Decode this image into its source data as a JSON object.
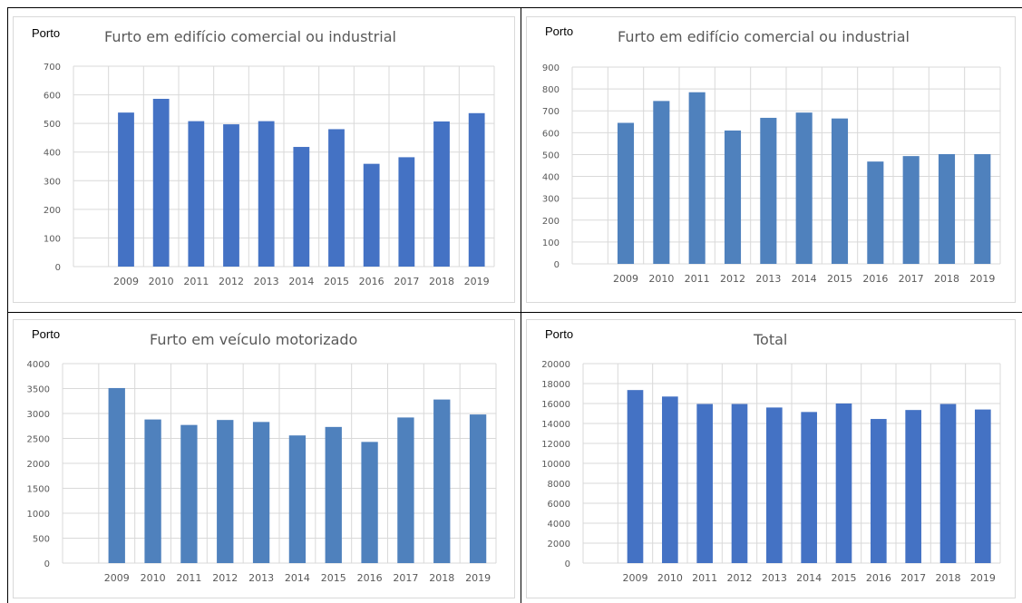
{
  "colors": {
    "bar_dark": "#4472c4",
    "bar_light": "#4f81bd",
    "grid": "#d9d9d9",
    "text": "#595959"
  },
  "chart_data": [
    {
      "type": "bar",
      "region_label": "Porto",
      "title": "Furto em edifício comercial ou industrial",
      "categories": [
        "2009",
        "2010",
        "2011",
        "2012",
        "2013",
        "2014",
        "2015",
        "2016",
        "2017",
        "2018",
        "2019"
      ],
      "values": [
        538,
        586,
        508,
        497,
        508,
        418,
        480,
        359,
        382,
        507,
        536
      ],
      "y_ticks": [
        "0",
        "100",
        "200",
        "300",
        "400",
        "500",
        "600",
        "700"
      ],
      "ylim": [
        0,
        700
      ],
      "color": "#4472c4",
      "grid": true
    },
    {
      "type": "bar",
      "region_label": "Porto",
      "title": "Furto em edifício comercial ou industrial",
      "categories": [
        "2009",
        "2010",
        "2011",
        "2012",
        "2013",
        "2014",
        "2015",
        "2016",
        "2017",
        "2018",
        "2019"
      ],
      "values": [
        645,
        745,
        785,
        610,
        668,
        692,
        665,
        468,
        493,
        502,
        502
      ],
      "y_ticks": [
        "0",
        "100",
        "200",
        "300",
        "400",
        "500",
        "600",
        "700",
        "800",
        "900"
      ],
      "ylim": [
        0,
        900
      ],
      "color": "#4f81bd",
      "grid": true
    },
    {
      "type": "bar",
      "region_label": "Porto",
      "title": "Furto em veículo motorizado",
      "categories": [
        "2009",
        "2010",
        "2011",
        "2012",
        "2013",
        "2014",
        "2015",
        "2016",
        "2017",
        "2018",
        "2019"
      ],
      "values": [
        3510,
        2880,
        2770,
        2870,
        2830,
        2560,
        2730,
        2430,
        2920,
        3280,
        2980
      ],
      "y_ticks": [
        "0",
        "500",
        "1000",
        "1500",
        "2000",
        "2500",
        "3000",
        "3500",
        "4000"
      ],
      "ylim": [
        0,
        4000
      ],
      "color": "#4f81bd",
      "grid": true
    },
    {
      "type": "bar",
      "region_label": "Porto",
      "title": "Total",
      "categories": [
        "2009",
        "2010",
        "2011",
        "2012",
        "2013",
        "2014",
        "2015",
        "2016",
        "2017",
        "2018",
        "2019"
      ],
      "values": [
        17350,
        16700,
        15950,
        15950,
        15600,
        15150,
        16000,
        14450,
        15350,
        15950,
        15400
      ],
      "y_ticks": [
        "0",
        "2000",
        "4000",
        "6000",
        "8000",
        "10000",
        "12000",
        "14000",
        "16000",
        "18000",
        "20000"
      ],
      "ylim": [
        0,
        20000
      ],
      "color": "#4472c4",
      "grid": true
    }
  ]
}
